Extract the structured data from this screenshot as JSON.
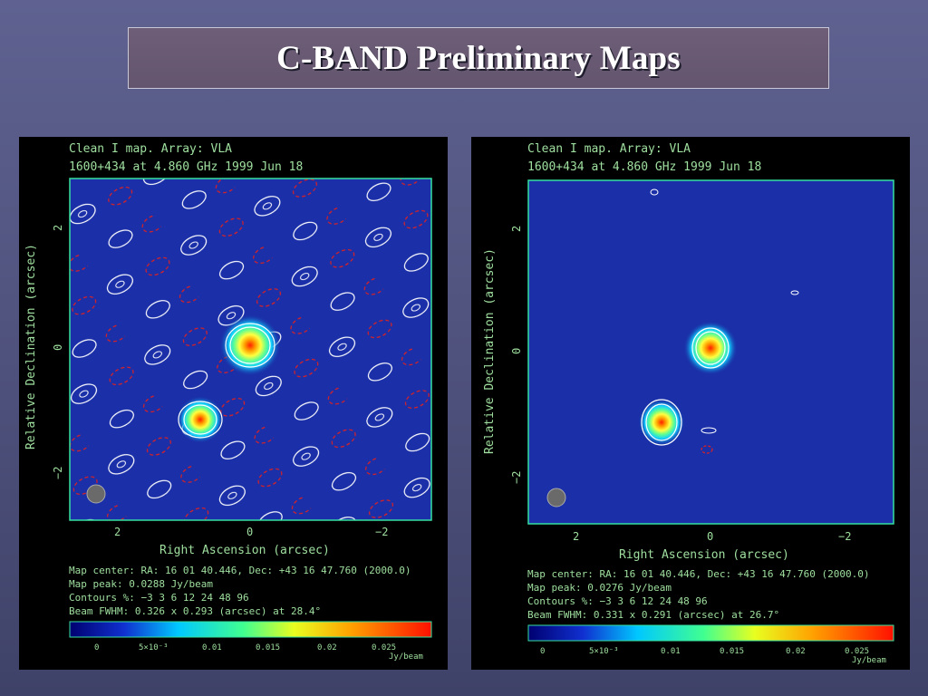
{
  "slide": {
    "title": "C-BAND Preliminary Maps"
  },
  "maps": [
    {
      "header_line1": "Clean I map.  Array:  VLA",
      "header_line2": "1600+434 at 4.860 GHz 1999 Jun 18",
      "x_axis_label": "Right Ascension   (arcsec)",
      "y_axis_label": "Relative Declination   (arcsec)",
      "x_ticks": [
        "2",
        "0",
        "−2"
      ],
      "y_ticks": [
        "2",
        "0",
        "−2"
      ],
      "map_center": "Map center:  RA: 16 01 40.446,  Dec: +43 16 47.760 (2000.0)",
      "map_peak": "Map peak: 0.0288 Jy/beam",
      "contours": "Contours %: −3 3 6 12 24 48 96",
      "beam_fwhm": "Beam FWHM: 0.326 x 0.293 (arcsec) at 28.4°",
      "colorbar_ticks": [
        "0",
        "5×10⁻³",
        "0.01",
        "0.015",
        "0.02",
        "0.025"
      ],
      "colorbar_unit": "Jy/beam"
    },
    {
      "header_line1": "Clean I map.  Array:  VLA",
      "header_line2": "1600+434 at 4.860 GHz 1999 Jun 18",
      "x_axis_label": "Right Ascension   (arcsec)",
      "y_axis_label": "Relative Declination   (arcsec)",
      "x_ticks": [
        "2",
        "0",
        "−2"
      ],
      "y_ticks": [
        "2",
        "0",
        "−2"
      ],
      "map_center": "Map center:  RA: 16 01 40.446,  Dec: +43 16 47.760 (2000.0)",
      "map_peak": "Map peak: 0.0276 Jy/beam",
      "contours": "Contours %: −3 3 6 12 24 48 96",
      "beam_fwhm": "Beam FWHM: 0.331 x 0.291 (arcsec) at 26.7°",
      "colorbar_ticks": [
        "0",
        "5×10⁻³",
        "0.01",
        "0.015",
        "0.02",
        "0.025"
      ],
      "colorbar_unit": "Jy/beam"
    }
  ],
  "colors": {
    "label_green": "#9fdf9f",
    "frame_green": "#36e0a0",
    "map_background": "#1a2fa8",
    "positive_contour": "#ffffff",
    "negative_contour": "#e02020"
  }
}
